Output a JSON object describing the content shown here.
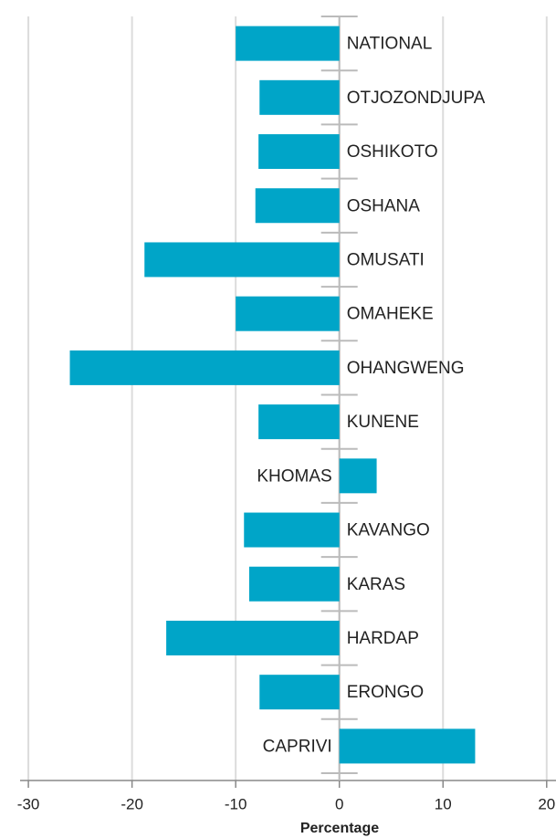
{
  "chart_data": {
    "type": "barh",
    "categories": [
      "NATIONAL",
      "OTJOZONDJUPA",
      "OSHIKOTO",
      "OSHANA",
      "OMUSATI",
      "OMAHEKE",
      "OHANGWENG",
      "KUNENE",
      "KHOMAS",
      "KAVANGO",
      "KARAS",
      "HARDAP",
      "ERONGO",
      "CAPRIVI"
    ],
    "values": [
      -10.0,
      -7.7,
      -7.8,
      -8.1,
      -18.8,
      -10.0,
      -26.0,
      -7.8,
      3.6,
      -9.2,
      -8.7,
      -16.7,
      -7.7,
      13.1
    ],
    "color": "#00a5c8",
    "xlabel": "Percentage",
    "xlim": [
      -30.8,
      20.9
    ],
    "xticks": [
      -30,
      -20,
      -10,
      0,
      10,
      20
    ],
    "grid": true
  }
}
